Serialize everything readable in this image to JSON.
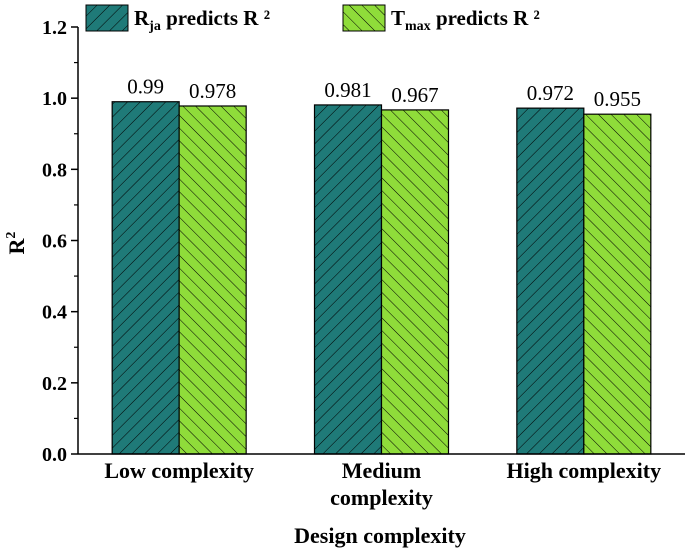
{
  "chart_data": {
    "type": "bar",
    "title": "",
    "xlabel": "Design complexity",
    "ylabel": {
      "base": "R",
      "sup": "2"
    },
    "ylim": [
      0,
      1.2
    ],
    "yticks": [
      "0.0",
      "0.2",
      "0.4",
      "0.6",
      "0.8",
      "1.0",
      "1.2"
    ],
    "ytick_values": [
      0,
      0.2,
      0.4,
      0.6,
      0.8,
      1.0,
      1.2
    ],
    "categories": [
      {
        "lines": [
          "Low complexity"
        ]
      },
      {
        "lines": [
          "Medium",
          "complexity"
        ]
      },
      {
        "lines": [
          "High complexity"
        ]
      }
    ],
    "legend_position": "top-left",
    "series": [
      {
        "name": "Rja predicts R²",
        "legend": {
          "main": "R",
          "sub": "ja",
          "rest": " predicts R ²"
        },
        "color": "#1f7a78",
        "hatch": "back-diagonal",
        "values": [
          0.99,
          0.981,
          0.972
        ],
        "labels": [
          "0.99",
          "0.981",
          "0.972"
        ]
      },
      {
        "name": "Tmax predicts R²",
        "legend": {
          "main": "T",
          "sub": "max",
          "rest": " predicts R ²"
        },
        "color": "#8fdc3a",
        "hatch": "forward-diagonal",
        "values": [
          0.978,
          0.967,
          0.955
        ],
        "labels": [
          "0.978",
          "0.967",
          "0.955"
        ]
      }
    ]
  }
}
